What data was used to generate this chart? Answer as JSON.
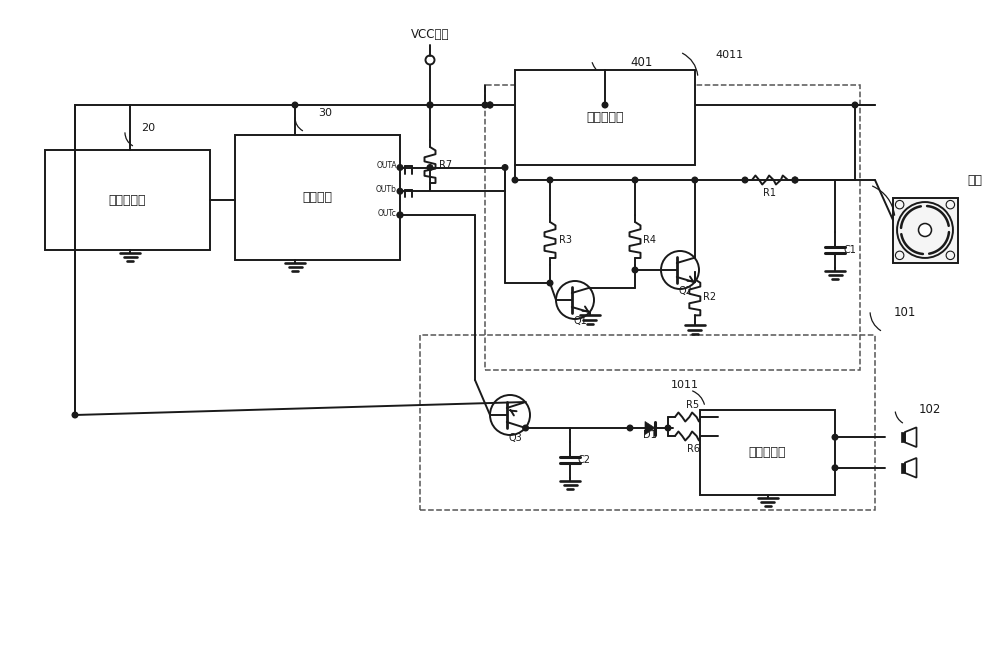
{
  "bg": "#ffffff",
  "lc": "#1a1a1a",
  "lw": 1.4,
  "fw": 10.0,
  "fh": 6.55,
  "dpi": 100,
  "labels": {
    "VCC": "VCC电源",
    "fan": "风扇",
    "vol": "音量调节器",
    "mc": "微控制器",
    "vr": "电压调节器",
    "pa": "功率放大器",
    "R1": "R1",
    "R2": "R2",
    "R3": "R3",
    "R4": "R4",
    "R5": "R5",
    "R6": "R6",
    "R7": "R7",
    "C1": "C1",
    "C2": "C2",
    "Q1": "Q1",
    "Q2": "Q2",
    "Q3": "Q3",
    "D1": "D1",
    "OUTA": "OUTA",
    "OUTB": "OUTb",
    "OUTC": "OUTc",
    "n20": "20",
    "n30": "30",
    "n101": "101",
    "n102": "102",
    "n401": "401",
    "n4011": "4011",
    "n1011": "1011"
  }
}
